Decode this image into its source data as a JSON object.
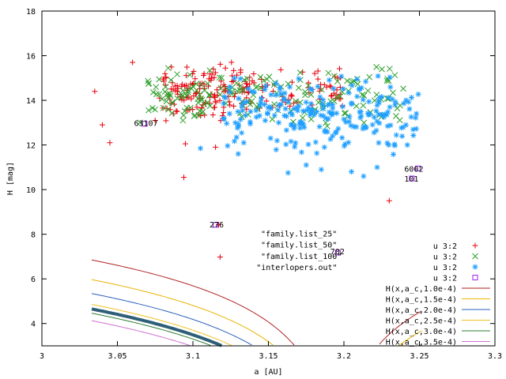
{
  "chart_data": {
    "type": "scatter",
    "xlabel": "a [AU]",
    "ylabel": "H [mag]",
    "xlim": [
      3.0,
      3.3
    ],
    "ylim": [
      3,
      18
    ],
    "xticks": [
      "3",
      "3.05",
      "3.1",
      "3.15",
      "3.2",
      "3.25",
      "3.3"
    ],
    "yticks": [
      "4",
      "6",
      "8",
      "10",
      "12",
      "14",
      "16",
      "18"
    ],
    "grid": false,
    "legend_position": "bottom-right",
    "resonance_a": 3.195,
    "series": [
      {
        "name": "u 3:2",
        "marker": "plus",
        "color": "#e8000b",
        "clusters": [
          {
            "x": [
              3.08,
              3.14
            ],
            "y": [
              13.0,
              15.8
            ],
            "n": 150
          },
          {
            "x": [
              3.14,
              3.2
            ],
            "y": [
              13.2,
              15.6
            ],
            "n": 60
          }
        ],
        "points": [
          [
            3.04,
            12.9
          ],
          [
            3.045,
            12.1
          ],
          [
            3.035,
            14.4
          ],
          [
            3.094,
            10.55
          ],
          [
            3.095,
            12.05
          ],
          [
            3.115,
            11.9
          ],
          [
            3.118,
            6.98
          ],
          [
            3.117,
            8.42
          ],
          [
            3.23,
            9.5
          ],
          [
            3.075,
            13.1
          ],
          [
            3.06,
            15.7
          ],
          [
            3.078,
            14.1
          ]
        ]
      },
      {
        "name": "u 3:2",
        "marker": "cross",
        "color": "#2ca02c",
        "clusters": [
          {
            "x": [
              3.07,
              3.14
            ],
            "y": [
              12.8,
              15.7
            ],
            "n": 90
          },
          {
            "x": [
              3.14,
              3.24
            ],
            "y": [
              12.6,
              15.6
            ],
            "n": 90
          }
        ],
        "points": [
          [
            3.065,
            13.0
          ]
        ]
      },
      {
        "name": "u 3:2",
        "marker": "star",
        "color": "#1f9fff",
        "clusters": [
          {
            "x": [
              3.12,
              3.25
            ],
            "y": [
              11.5,
              15.2
            ],
            "n": 230
          }
        ],
        "points": [
          [
            3.163,
            10.75
          ],
          [
            3.185,
            10.9
          ],
          [
            3.205,
            10.8
          ],
          [
            3.222,
            11.0
          ],
          [
            3.242,
            12.0
          ],
          [
            3.105,
            11.85
          ],
          [
            3.13,
            11.6
          ],
          [
            3.175,
            11.1
          ],
          [
            3.213,
            10.6
          ],
          [
            3.248,
            13.4
          ]
        ]
      },
      {
        "name": "u 3:2",
        "marker": "square",
        "color": "#a020f0",
        "clusters": [],
        "points": [
          [
            3.068,
            12.95
          ],
          [
            3.115,
            8.42
          ],
          [
            3.196,
            7.18
          ],
          [
            3.245,
            10.5
          ],
          [
            3.249,
            10.95
          ]
        ]
      }
    ],
    "curves": [
      {
        "name": "H(x,a_c,1.0e-4)",
        "color": "#b22222",
        "k": 1.0,
        "width": 1
      },
      {
        "name": "H(x,a_c,1.5e-4)",
        "color": "#e8b400",
        "k": 1.5,
        "width": 1
      },
      {
        "name": "H(x,a_c,2.0e-4)",
        "color": "#2a5fbd",
        "k": 2.0,
        "width": 1
      },
      {
        "name": "H(x,a_c,2.5e-4)",
        "color": "#f0c020",
        "k": 2.5,
        "width": 1
      },
      {
        "name": "H(x,a_c,3.0e-4)",
        "color": "#2e7d32",
        "k": 3.0,
        "width": 1
      },
      {
        "name": "H(x,a_c,3.5e-4)",
        "color": "#d070d0",
        "k": 3.5,
        "width": 1
      }
    ],
    "envelope": {
      "color": "#2f5f78",
      "k": 2.75,
      "width": 4
    },
    "annotations": [
      {
        "text": "\"family.list_25\"",
        "x": 3.145,
        "y": 7.9
      },
      {
        "text": "\"family.list_50\"",
        "x": 3.145,
        "y": 7.4
      },
      {
        "text": "\"family.list_100\"",
        "x": 3.145,
        "y": 6.9
      },
      {
        "text": "\"interlopers.out\"",
        "x": 3.142,
        "y": 6.4
      },
      {
        "text": "702",
        "x": 3.191,
        "y": 7.1
      },
      {
        "text": "276",
        "x": 3.111,
        "y": 8.3
      },
      {
        "text": "63107",
        "x": 3.061,
        "y": 12.85
      },
      {
        "text": "6002",
        "x": 3.24,
        "y": 10.8
      },
      {
        "text": "101",
        "x": 3.24,
        "y": 10.35
      }
    ]
  }
}
